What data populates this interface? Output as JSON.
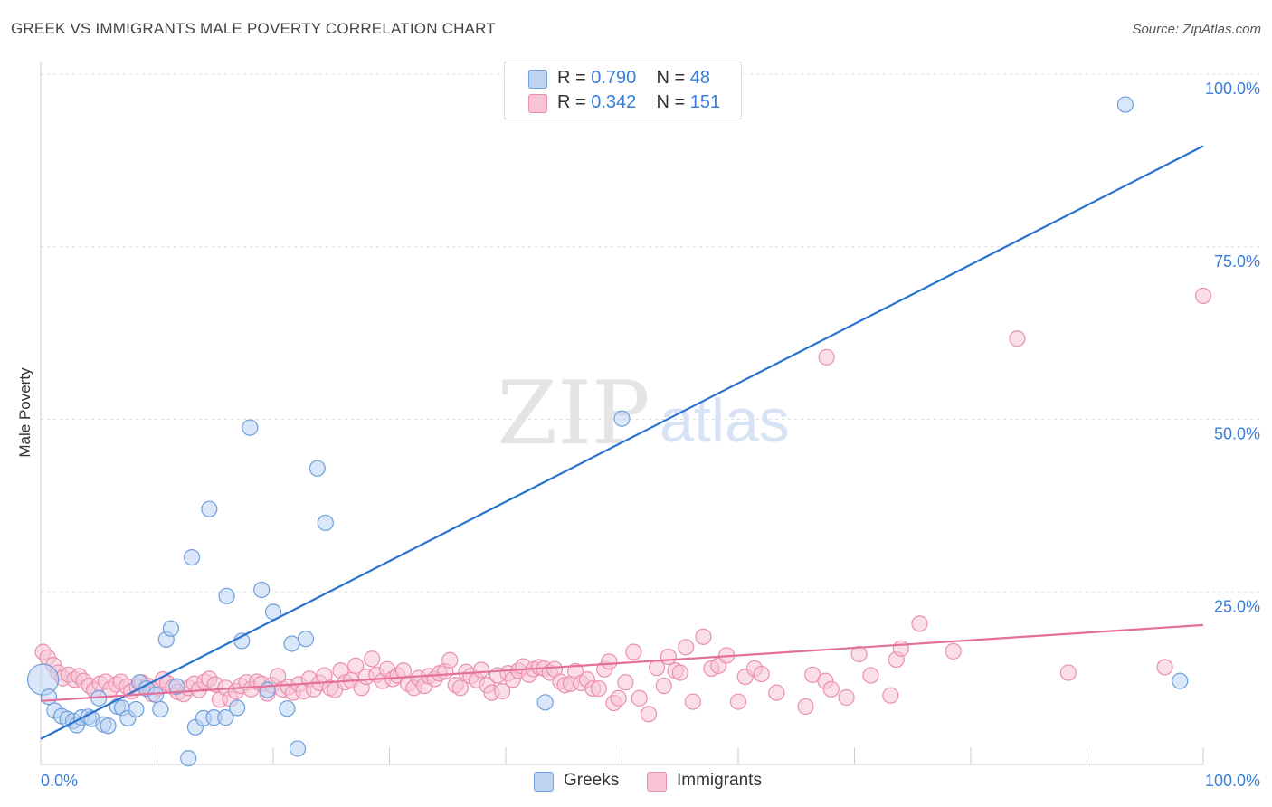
{
  "header": {
    "title": "GREEK VS IMMIGRANTS MALE POVERTY CORRELATION CHART",
    "source": "Source: ZipAtlas.com"
  },
  "legend": {
    "greeks": {
      "r_label": "R =",
      "r_value": "0.790",
      "n_label": "N =",
      "n_value": "48"
    },
    "immigrants": {
      "r_label": "R =",
      "r_value": "0.342",
      "n_label": "N =",
      "n_value": "151"
    }
  },
  "bottom_legend": {
    "greeks": "Greeks",
    "immigrants": "Immigrants"
  },
  "colors": {
    "greeks_fill": "#bcd3f2",
    "greeks_stroke": "#6f9fdc",
    "greeks_line": "#2a72d0",
    "immigrants_fill": "#f8c4d5",
    "immigrants_stroke": "#ea8fae",
    "immigrants_line": "#e4709a",
    "tick_label": "#3a7dd8",
    "grid": "#dddddd"
  },
  "watermark": {
    "zip": "ZIP",
    "atlas": "atlas"
  },
  "chart_data": {
    "type": "scatter",
    "xlabel": "",
    "ylabel": "Male Poverty",
    "xlim": [
      0,
      100
    ],
    "ylim": [
      0,
      100
    ],
    "x_tick_labels": [
      "0.0%",
      "100.0%"
    ],
    "y_ticks": [
      25,
      50,
      75,
      100
    ],
    "y_tick_labels": [
      "25.0%",
      "50.0%",
      "75.0%",
      "100.0%"
    ],
    "grid": true,
    "legend_position": "top-center",
    "series": [
      {
        "name": "Greeks",
        "r": 0.79,
        "n": 48,
        "trend": {
          "x": [
            0,
            100
          ],
          "y": [
            3.7,
            89.6
          ]
        },
        "points": [
          [
            0.2,
            12.3
          ],
          [
            0.7,
            9.8
          ],
          [
            1.2,
            7.8
          ],
          [
            1.8,
            7.0
          ],
          [
            2.3,
            6.6
          ],
          [
            2.8,
            6.3
          ],
          [
            3.1,
            5.7
          ],
          [
            3.5,
            6.8
          ],
          [
            4.1,
            6.9
          ],
          [
            4.4,
            6.6
          ],
          [
            5.4,
            5.8
          ],
          [
            5.8,
            5.6
          ],
          [
            5.0,
            9.6
          ],
          [
            6.6,
            8.4
          ],
          [
            7.0,
            8.2
          ],
          [
            7.5,
            6.7
          ],
          [
            8.2,
            8.0
          ],
          [
            8.5,
            11.9
          ],
          [
            9.1,
            11.0
          ],
          [
            9.9,
            10.1
          ],
          [
            10.3,
            8.0
          ],
          [
            10.8,
            18.1
          ],
          [
            11.2,
            19.7
          ],
          [
            11.7,
            11.3
          ],
          [
            12.7,
            0.9
          ],
          [
            13.0,
            30.0
          ],
          [
            13.3,
            5.4
          ],
          [
            14.0,
            6.7
          ],
          [
            14.5,
            37.0
          ],
          [
            14.9,
            6.8
          ],
          [
            15.9,
            6.8
          ],
          [
            16.0,
            24.4
          ],
          [
            16.9,
            8.2
          ],
          [
            17.3,
            17.9
          ],
          [
            18.0,
            48.8
          ],
          [
            19.0,
            25.3
          ],
          [
            19.5,
            10.8
          ],
          [
            20.0,
            22.1
          ],
          [
            21.2,
            8.1
          ],
          [
            21.6,
            17.5
          ],
          [
            22.1,
            2.3
          ],
          [
            22.8,
            18.2
          ],
          [
            23.8,
            42.9
          ],
          [
            24.5,
            35.0
          ],
          [
            43.4,
            9.0
          ],
          [
            50.0,
            50.1
          ],
          [
            93.3,
            95.6
          ],
          [
            98.0,
            12.1
          ]
        ]
      },
      {
        "name": "Immigrants",
        "r": 0.342,
        "n": 151,
        "trend": {
          "x": [
            0,
            100
          ],
          "y": [
            9.2,
            20.2
          ]
        },
        "points": [
          [
            0.2,
            16.3
          ],
          [
            0.6,
            15.5
          ],
          [
            1.1,
            14.4
          ],
          [
            1.5,
            13.3
          ],
          [
            1.9,
            12.5
          ],
          [
            2.4,
            13.0
          ],
          [
            2.9,
            12.3
          ],
          [
            3.3,
            12.8
          ],
          [
            3.7,
            12.1
          ],
          [
            4.2,
            11.4
          ],
          [
            4.6,
            10.8
          ],
          [
            5.1,
            11.7
          ],
          [
            5.6,
            12.0
          ],
          [
            6.0,
            10.9
          ],
          [
            6.5,
            11.6
          ],
          [
            6.9,
            12.0
          ],
          [
            7.4,
            11.3
          ],
          [
            7.8,
            10.6
          ],
          [
            8.3,
            11.2
          ],
          [
            8.7,
            11.9
          ],
          [
            9.2,
            11.4
          ],
          [
            9.6,
            10.2
          ],
          [
            10.1,
            11.1
          ],
          [
            10.5,
            12.3
          ],
          [
            10.9,
            11.8
          ],
          [
            11.4,
            11.2
          ],
          [
            11.8,
            10.5
          ],
          [
            12.3,
            10.2
          ],
          [
            12.7,
            11.1
          ],
          [
            13.2,
            11.7
          ],
          [
            13.6,
            10.8
          ],
          [
            14.1,
            12.0
          ],
          [
            14.5,
            12.4
          ],
          [
            15.0,
            11.6
          ],
          [
            15.4,
            9.4
          ],
          [
            15.9,
            11.1
          ],
          [
            16.3,
            9.5
          ],
          [
            16.8,
            10.6
          ],
          [
            17.2,
            11.4
          ],
          [
            17.7,
            11.9
          ],
          [
            18.1,
            10.9
          ],
          [
            18.6,
            12.0
          ],
          [
            19.0,
            11.7
          ],
          [
            19.5,
            10.3
          ],
          [
            19.9,
            11.5
          ],
          [
            20.4,
            12.8
          ],
          [
            20.8,
            10.9
          ],
          [
            21.3,
            11.2
          ],
          [
            21.7,
            10.4
          ],
          [
            22.2,
            11.6
          ],
          [
            22.6,
            10.6
          ],
          [
            23.1,
            12.4
          ],
          [
            23.5,
            10.9
          ],
          [
            24.0,
            11.8
          ],
          [
            24.4,
            12.9
          ],
          [
            24.9,
            11.1
          ],
          [
            25.3,
            10.8
          ],
          [
            25.8,
            13.6
          ],
          [
            26.2,
            11.9
          ],
          [
            26.7,
            12.2
          ],
          [
            27.1,
            14.3
          ],
          [
            27.6,
            11.1
          ],
          [
            28.0,
            12.7
          ],
          [
            28.5,
            15.3
          ],
          [
            28.9,
            13.0
          ],
          [
            29.4,
            12.1
          ],
          [
            29.8,
            13.8
          ],
          [
            30.3,
            12.4
          ],
          [
            30.7,
            12.9
          ],
          [
            31.2,
            13.6
          ],
          [
            31.6,
            11.7
          ],
          [
            32.1,
            11.1
          ],
          [
            32.5,
            12.5
          ],
          [
            33.0,
            11.4
          ],
          [
            33.4,
            12.8
          ],
          [
            33.9,
            12.4
          ],
          [
            34.3,
            13.2
          ],
          [
            34.8,
            13.5
          ],
          [
            35.2,
            15.1
          ],
          [
            35.7,
            11.5
          ],
          [
            36.1,
            11.1
          ],
          [
            36.6,
            13.4
          ],
          [
            37.0,
            12.8
          ],
          [
            37.5,
            12.2
          ],
          [
            37.9,
            13.7
          ],
          [
            38.4,
            11.5
          ],
          [
            38.8,
            10.4
          ],
          [
            39.3,
            12.9
          ],
          [
            39.7,
            10.6
          ],
          [
            40.2,
            13.2
          ],
          [
            40.6,
            12.3
          ],
          [
            41.1,
            13.6
          ],
          [
            41.5,
            14.2
          ],
          [
            42.0,
            13.0
          ],
          [
            42.4,
            13.8
          ],
          [
            42.9,
            14.1
          ],
          [
            43.3,
            13.9
          ],
          [
            43.8,
            13.3
          ],
          [
            44.2,
            13.8
          ],
          [
            44.7,
            12.0
          ],
          [
            45.1,
            11.5
          ],
          [
            45.6,
            11.7
          ],
          [
            46.0,
            13.5
          ],
          [
            46.5,
            11.8
          ],
          [
            47.0,
            12.3
          ],
          [
            47.5,
            11.0
          ],
          [
            48.0,
            11.0
          ],
          [
            48.5,
            13.8
          ],
          [
            48.9,
            14.9
          ],
          [
            49.3,
            8.9
          ],
          [
            49.7,
            9.6
          ],
          [
            50.3,
            11.9
          ],
          [
            51.0,
            16.3
          ],
          [
            51.5,
            9.6
          ],
          [
            52.3,
            7.3
          ],
          [
            53.0,
            14.0
          ],
          [
            53.6,
            11.4
          ],
          [
            54.0,
            15.6
          ],
          [
            54.6,
            13.6
          ],
          [
            55.0,
            13.3
          ],
          [
            55.5,
            17.0
          ],
          [
            56.1,
            9.1
          ],
          [
            57.0,
            18.5
          ],
          [
            57.7,
            13.9
          ],
          [
            58.3,
            14.3
          ],
          [
            59.0,
            15.8
          ],
          [
            60.0,
            9.1
          ],
          [
            60.6,
            12.7
          ],
          [
            61.4,
            13.9
          ],
          [
            62.0,
            13.1
          ],
          [
            63.3,
            10.4
          ],
          [
            65.8,
            8.4
          ],
          [
            66.4,
            13.0
          ],
          [
            67.5,
            12.1
          ],
          [
            68.0,
            10.9
          ],
          [
            69.3,
            9.7
          ],
          [
            70.4,
            16.0
          ],
          [
            71.4,
            12.9
          ],
          [
            73.1,
            10.0
          ],
          [
            73.6,
            15.2
          ],
          [
            74.0,
            16.8
          ],
          [
            75.6,
            20.4
          ],
          [
            78.5,
            16.4
          ],
          [
            88.4,
            13.3
          ],
          [
            96.7,
            14.1
          ],
          [
            84.0,
            61.7
          ],
          [
            100.0,
            67.9
          ],
          [
            67.6,
            59.0
          ]
        ]
      }
    ]
  }
}
